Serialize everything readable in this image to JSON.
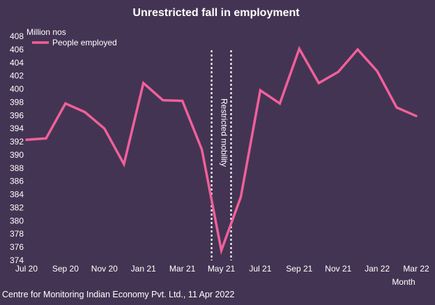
{
  "chart_data": {
    "type": "line",
    "title": "Unrestricted fall in employment",
    "ylabel": "Million nos",
    "xlabel": "Month",
    "ylim": [
      374,
      408
    ],
    "yticks": [
      374,
      376,
      378,
      380,
      382,
      384,
      386,
      388,
      390,
      392,
      394,
      396,
      398,
      400,
      402,
      404,
      406,
      408
    ],
    "categories": [
      "Jul 20",
      "Aug 20",
      "Sep 20",
      "Oct 20",
      "Nov 20",
      "Dec 20",
      "Jan 21",
      "Feb 21",
      "Mar 21",
      "Apr 21",
      "May 21",
      "Jun 21",
      "Jul 21",
      "Aug 21",
      "Sep 21",
      "Oct 21",
      "Nov 21",
      "Dec 21",
      "Jan 22",
      "Feb 22",
      "Mar 22"
    ],
    "tick_labels": [
      "Jul 20",
      "Sep 20",
      "Nov 20",
      "Jan 21",
      "Mar 21",
      "May 21",
      "Jul 21",
      "Sep 21",
      "Nov 21",
      "Jan 22",
      "Mar 22"
    ],
    "series": [
      {
        "name": "People employed",
        "color": "#f0609a",
        "values": [
          392.3,
          392.5,
          397.8,
          396.5,
          394.0,
          388.6,
          400.9,
          398.3,
          398.2,
          390.8,
          375.5,
          383.6,
          399.8,
          397.8,
          406.1,
          400.9,
          402.6,
          406.0,
          402.7,
          397.2,
          395.9
        ]
      }
    ],
    "annotation": {
      "text": "Restricted mobility",
      "from": "Apr 21",
      "to": "Jun 21"
    },
    "legend_position": "top-left",
    "source": "Centre for Monitoring Indian Economy Pvt. Ltd., 11 Apr 2022"
  }
}
